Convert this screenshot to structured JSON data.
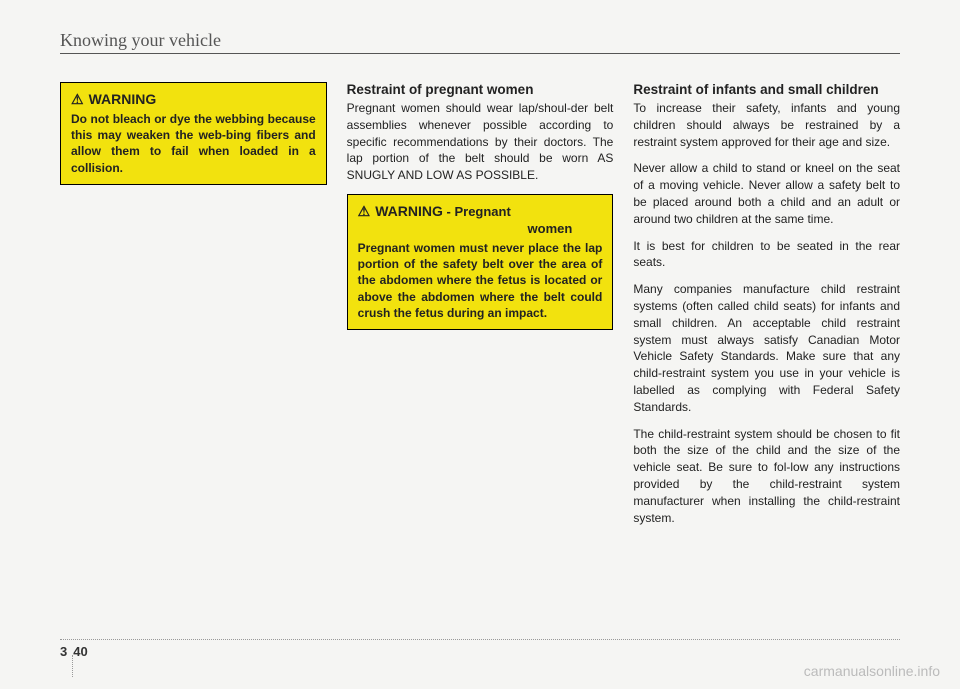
{
  "header": "Knowing your vehicle",
  "col1": {
    "warning": {
      "label": "WARNING",
      "body": "Do not bleach or dye the webbing because this may weaken the web-bing fibers and allow them to fail when loaded in a collision."
    }
  },
  "col2": {
    "heading": "Restraint of pregnant women",
    "p1": "Pregnant women should wear lap/shoul-der belt assemblies whenever possible according to specific recommendations by their doctors. The lap portion of the belt should be worn AS SNUGLY AND LOW AS POSSIBLE.",
    "warning": {
      "label": "WARNING",
      "suffix": " - Pregnant",
      "subline": "women",
      "body": "Pregnant women must never place the lap portion of the safety belt over the area of the abdomen where the fetus is located or above the abdomen where the belt could crush the fetus during an impact."
    }
  },
  "col3": {
    "heading": "Restraint of infants and small children",
    "p1": "To increase their safety, infants and young children should always be restrained by a restraint system approved for their age and size.",
    "p2": "Never allow a child to stand or kneel on the seat of a moving vehicle. Never allow a safety belt to be placed around both a child and an adult or around two children at the same time.",
    "p3": "It is best for children to be seated in the rear seats.",
    "p4": "Many companies manufacture child restraint systems (often called child seats) for infants and small children. An acceptable child restraint system must always satisfy Canadian Motor Vehicle Safety Standards. Make sure that any child-restraint system you use in your vehicle is labelled as complying with Federal Safety Standards.",
    "p5": "The child-restraint system should be chosen to fit both the size of the child and the size of the vehicle seat. Be sure to fol-low any instructions provided by the child-restraint system manufacturer when installing the child-restraint system."
  },
  "footer": {
    "section": "3",
    "page": "40"
  },
  "watermark": "carmanualsonline.info"
}
